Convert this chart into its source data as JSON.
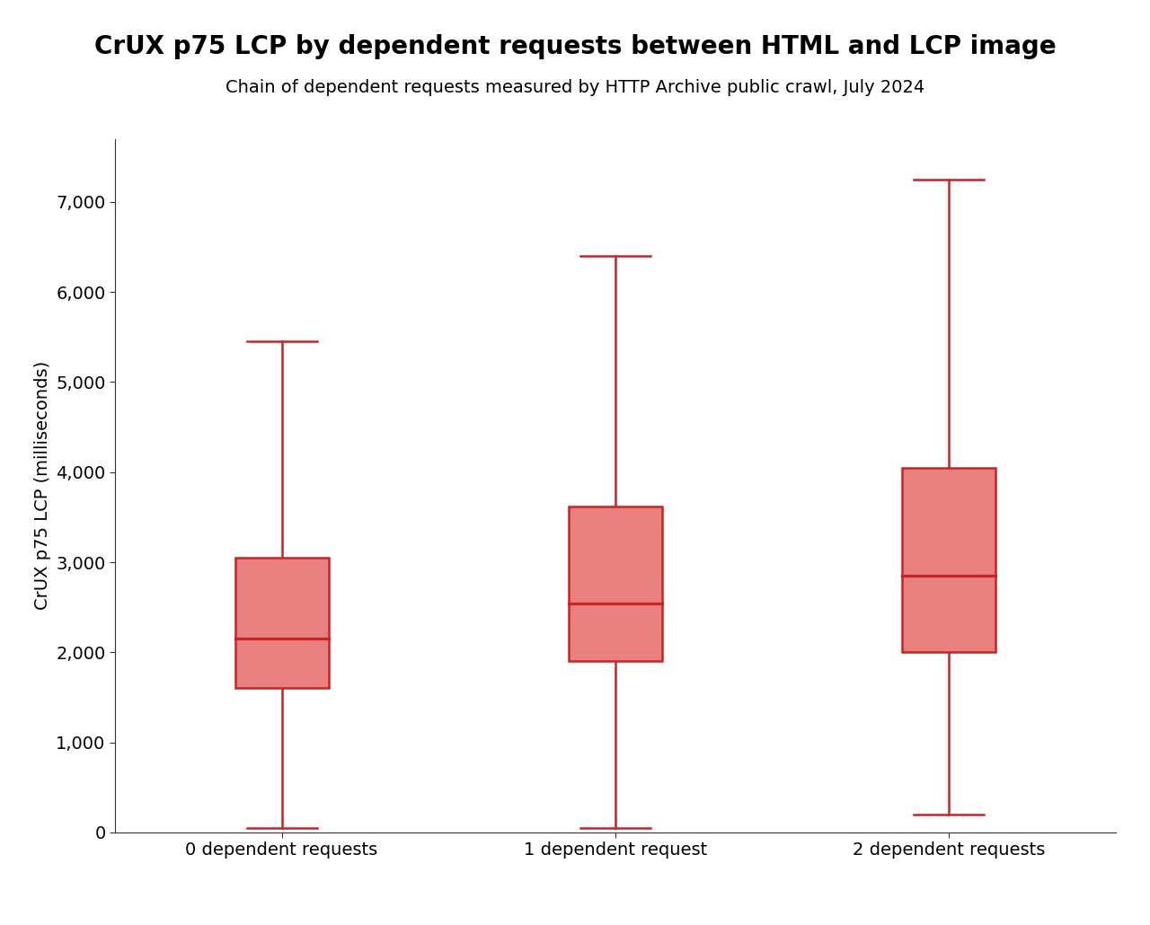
{
  "title": "CrUX p75 LCP by dependent requests between HTML and LCP image",
  "subtitle": "Chain of dependent requests measured by HTTP Archive public crawl, July 2024",
  "ylabel": "CrUX p75 LCP (milliseconds)",
  "categories": [
    "0 dependent requests",
    "1 dependent request",
    "2 dependent requests"
  ],
  "boxes": [
    {
      "whisker_low": 50,
      "q1": 1600,
      "median": 2150,
      "q3": 3050,
      "whisker_high": 5450
    },
    {
      "whisker_low": 50,
      "q1": 1900,
      "median": 2540,
      "q3": 3620,
      "whisker_high": 6400
    },
    {
      "whisker_low": 200,
      "q1": 2000,
      "median": 2850,
      "q3": 4050,
      "whisker_high": 7250
    }
  ],
  "box_color": "#e88080",
  "box_edge_color": "#cc2222",
  "median_color": "#cc2222",
  "whisker_color": "#cc2222",
  "cap_color": "#cc2222",
  "ylim": [
    0,
    7700
  ],
  "yticks": [
    0,
    1000,
    2000,
    3000,
    4000,
    5000,
    6000,
    7000
  ],
  "ytick_labels": [
    "0",
    "1,000",
    "2,000",
    "3,000",
    "4,000",
    "5,000",
    "6,000",
    "7,000"
  ],
  "box_width": 0.28,
  "linewidth": 1.8,
  "title_fontsize": 20,
  "subtitle_fontsize": 14,
  "tick_fontsize": 14,
  "label_fontsize": 14,
  "background_color": "#ffffff"
}
